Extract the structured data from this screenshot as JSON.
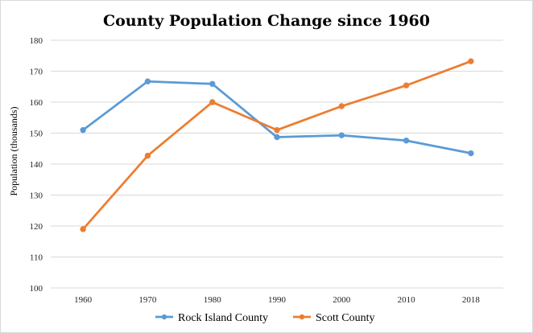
{
  "chart_data": {
    "type": "line",
    "title": "County Population Change since 1960",
    "xlabel": "",
    "ylabel": "Population (thousands)",
    "categories": [
      "1960",
      "1970",
      "1980",
      "1990",
      "2000",
      "2010",
      "2018"
    ],
    "ylim": [
      100,
      180
    ],
    "yticks": [
      100,
      110,
      120,
      130,
      140,
      150,
      160,
      170,
      180
    ],
    "grid": true,
    "legend": "bottom",
    "series": [
      {
        "name": "Rock Island County",
        "color": "#5b9bd5",
        "values": [
          151,
          166.7,
          165.9,
          148.7,
          149.3,
          147.6,
          143.5
        ]
      },
      {
        "name": "Scott County",
        "color": "#ed7d31",
        "values": [
          119,
          142.7,
          160,
          151,
          158.7,
          165.4,
          173.2
        ]
      }
    ]
  }
}
